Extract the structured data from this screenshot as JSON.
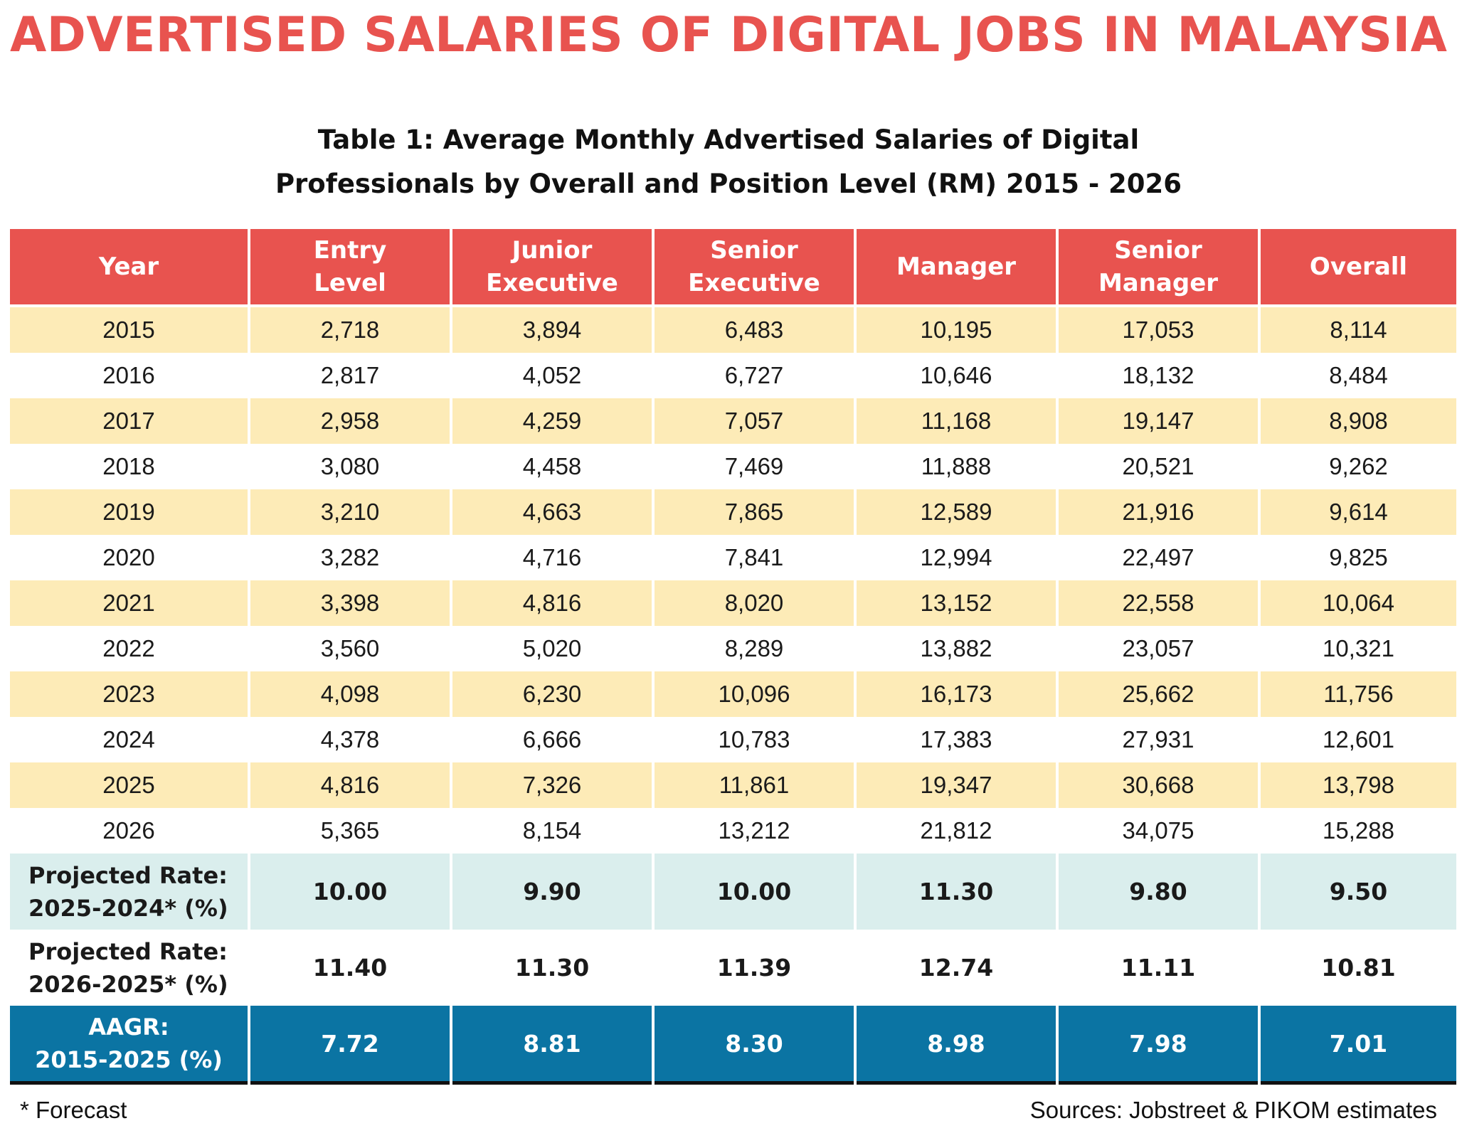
{
  "headline": "ADVERTISED SALARIES OF DIGITAL JOBS IN MALAYSIA",
  "table_title_line1": "Table 1: Average Monthly Advertised Salaries of Digital",
  "table_title_line2": "Professionals by Overall and Position Level (RM) 2015 - 2026",
  "footnote": "* Forecast",
  "source": "Sources: Jobstreet & PIKOM estimates",
  "colors": {
    "headline": "#e8534f",
    "header_bg": "#e8534f",
    "stripe": "#fdebb7",
    "projected_bg": "#daeeed",
    "aagr_bg": "#0b74a3"
  },
  "chart_data": {
    "type": "table",
    "title": "Table 1: Average Monthly Advertised Salaries of Digital Professionals by Overall and Position Level (RM) 2015 - 2026",
    "columns": [
      {
        "line1": "Year",
        "line2": ""
      },
      {
        "line1": "Entry",
        "line2": "Level"
      },
      {
        "line1": "Junior",
        "line2": "Executive"
      },
      {
        "line1": "Senior",
        "line2": "Executive"
      },
      {
        "line1": "Manager",
        "line2": ""
      },
      {
        "line1": "Senior",
        "line2": "Manager"
      },
      {
        "line1": "Overall",
        "line2": ""
      }
    ],
    "rows": [
      [
        "2015",
        "2,718",
        "3,894",
        "6,483",
        "10,195",
        "17,053",
        "8,114"
      ],
      [
        "2016",
        "2,817",
        "4,052",
        "6,727",
        "10,646",
        "18,132",
        "8,484"
      ],
      [
        "2017",
        "2,958",
        "4,259",
        "7,057",
        "11,168",
        "19,147",
        "8,908"
      ],
      [
        "2018",
        "3,080",
        "4,458",
        "7,469",
        "11,888",
        "20,521",
        "9,262"
      ],
      [
        "2019",
        "3,210",
        "4,663",
        "7,865",
        "12,589",
        "21,916",
        "9,614"
      ],
      [
        "2020",
        "3,282",
        "4,716",
        "7,841",
        "12,994",
        "22,497",
        "9,825"
      ],
      [
        "2021",
        "3,398",
        "4,816",
        "8,020",
        "13,152",
        "22,558",
        "10,064"
      ],
      [
        "2022",
        "3,560",
        "5,020",
        "8,289",
        "13,882",
        "23,057",
        "10,321"
      ],
      [
        "2023",
        "4,098",
        "6,230",
        "10,096",
        "16,173",
        "25,662",
        "11,756"
      ],
      [
        "2024",
        "4,378",
        "6,666",
        "10,783",
        "17,383",
        "27,931",
        "12,601"
      ],
      [
        "2025",
        "4,816",
        "7,326",
        "11,861",
        "19,347",
        "30,668",
        "13,798"
      ],
      [
        "2026",
        "5,365",
        "8,154",
        "13,212",
        "21,812",
        "34,075",
        "15,288"
      ]
    ],
    "summary_rows": [
      {
        "label1": "Projected Rate:",
        "label2": "2025-2024* (%)",
        "values": [
          "10.00",
          "9.90",
          "10.00",
          "11.30",
          "9.80",
          "9.50"
        ]
      },
      {
        "label1": "Projected Rate:",
        "label2": "2026-2025* (%)",
        "values": [
          "11.40",
          "11.30",
          "11.39",
          "12.74",
          "11.11",
          "10.81"
        ]
      },
      {
        "label1": "AAGR:",
        "label2": "2015-2025 (%)",
        "values": [
          "7.72",
          "8.81",
          "8.30",
          "8.98",
          "7.98",
          "7.01"
        ]
      }
    ]
  }
}
